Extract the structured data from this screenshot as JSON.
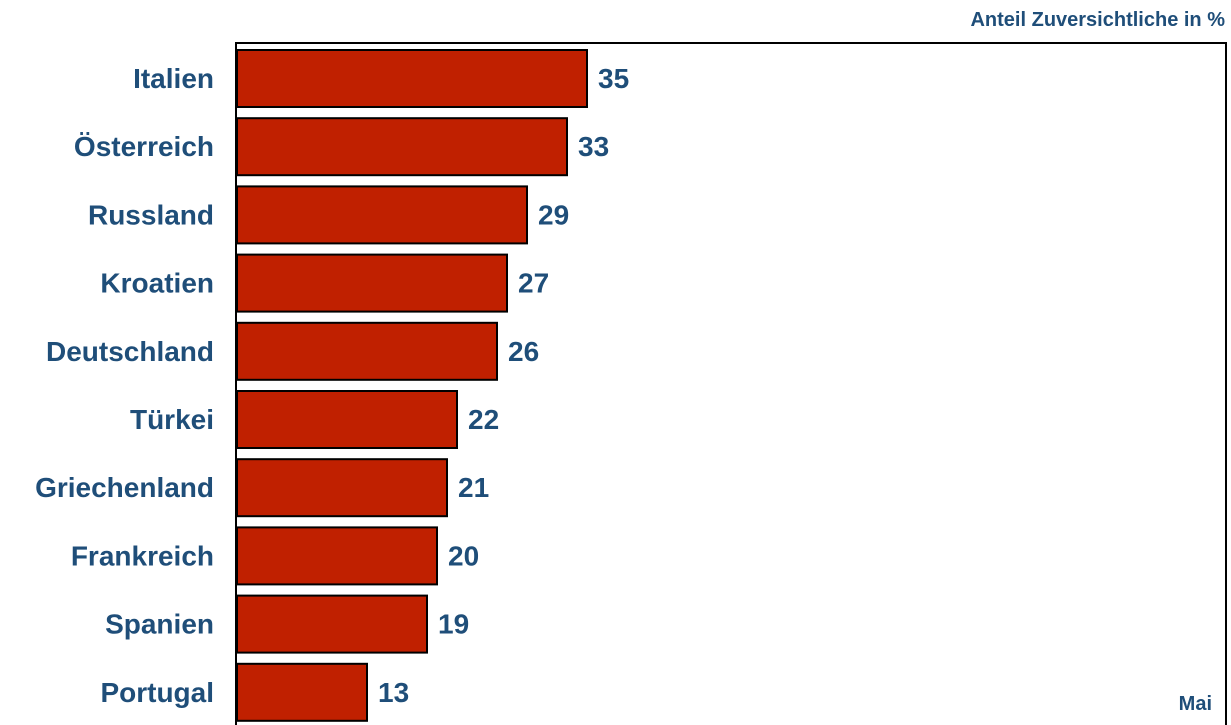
{
  "chart_data": {
    "type": "bar",
    "orientation": "horizontal",
    "unit_label": "Anteil Zuversichtliche in %",
    "period_label": "Mai",
    "categories": [
      "Italien",
      "Österreich",
      "Russland",
      "Kroatien",
      "Deutschland",
      "Türkei",
      "Griechenland",
      "Frankreich",
      "Spanien",
      "Portugal"
    ],
    "values": [
      35,
      33,
      29,
      27,
      26,
      22,
      21,
      20,
      19,
      13
    ],
    "data_labels": [
      "35",
      "33",
      "29",
      "27",
      "26",
      "22",
      "21",
      "20",
      "19",
      "13"
    ],
    "xlim": [
      0,
      100
    ],
    "grid": false,
    "legend": "none",
    "colors": {
      "bar_fill": "#c02000",
      "bar_stroke": "#000000",
      "label_text": "#1f4e79",
      "frame": "#000000"
    }
  }
}
